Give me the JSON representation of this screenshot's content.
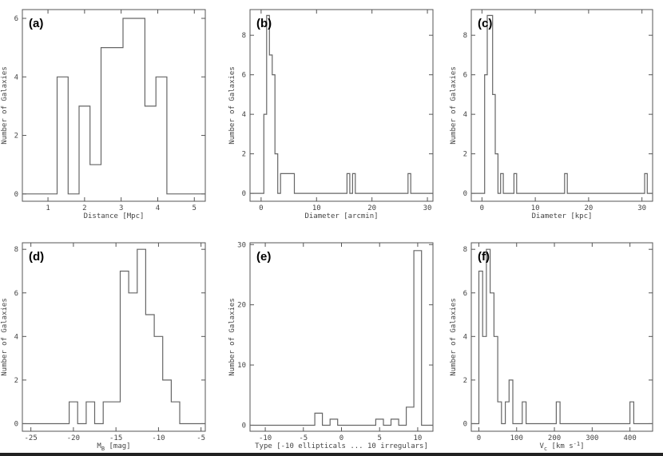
{
  "chart_data": [
    {
      "type": "histogram",
      "panel_label": "(a)",
      "xlabel": "Distance [Mpc]",
      "ylabel": "Number of Galaxies",
      "xlim": [
        0.3,
        5.3
      ],
      "ylim": [
        -0.25,
        6.3
      ],
      "xticks": [
        1,
        2,
        3,
        4,
        5
      ],
      "yticks": [
        0,
        2,
        4,
        6
      ],
      "bin_edges": [
        0.3,
        1.25,
        1.55,
        1.85,
        2.15,
        2.45,
        2.75,
        3.05,
        3.35,
        3.65,
        3.95,
        4.25,
        5.3
      ],
      "counts": [
        0,
        4,
        0,
        3,
        1,
        5,
        5,
        6,
        6,
        3,
        4,
        0
      ]
    },
    {
      "type": "histogram",
      "panel_label": "(b)",
      "xlabel": "Diameter [arcmin]",
      "ylabel": "Number of Galaxies",
      "xlim": [
        -2,
        31
      ],
      "ylim": [
        -0.4,
        9.3
      ],
      "xticks": [
        0,
        10,
        20,
        30
      ],
      "yticks": [
        0,
        2,
        4,
        6,
        8
      ],
      "bin_edges": [
        -2,
        0.5,
        1.0,
        1.5,
        2.0,
        2.5,
        3.0,
        3.5,
        6.0,
        15.5,
        16.0,
        16.5,
        17.0,
        26.5,
        27.0,
        31
      ],
      "counts": [
        0,
        4,
        9,
        7,
        6,
        2,
        0,
        1,
        0,
        1,
        0,
        1,
        0,
        1,
        0
      ]
    },
    {
      "type": "histogram",
      "panel_label": "(c)",
      "xlabel": "Diameter [kpc]",
      "ylabel": "Number of Galaxies",
      "xlim": [
        -2,
        32
      ],
      "ylim": [
        -0.4,
        9.3
      ],
      "xticks": [
        0,
        10,
        20,
        30
      ],
      "yticks": [
        0,
        2,
        4,
        6,
        8
      ],
      "bin_edges": [
        -2,
        0.5,
        1.0,
        2.0,
        2.5,
        3.0,
        3.5,
        4.0,
        6.0,
        6.5,
        15.5,
        16.0,
        30.5,
        31.0,
        32
      ],
      "counts": [
        0,
        6,
        9,
        5,
        2,
        0,
        1,
        0,
        1,
        0,
        1,
        0,
        1,
        0
      ]
    },
    {
      "type": "histogram",
      "panel_label": "(d)",
      "xlabel": "M_B [mag]",
      "xlabel_main": "M",
      "xlabel_sub": "B",
      "xlabel_tail": " [mag]",
      "ylabel": "Number of Galaxies",
      "xlim": [
        -26,
        -4.5
      ],
      "ylim": [
        -0.35,
        8.3
      ],
      "xticks": [
        -25,
        -20,
        -15,
        -10,
        -5
      ],
      "yticks": [
        0,
        2,
        4,
        6,
        8
      ],
      "bin_edges": [
        -26,
        -20.5,
        -19.5,
        -18.5,
        -17.5,
        -16.5,
        -15.5,
        -14.5,
        -13.5,
        -12.5,
        -11.5,
        -10.5,
        -9.5,
        -8.5,
        -7.5,
        -4.5
      ],
      "counts": [
        0,
        1,
        0,
        1,
        0,
        1,
        1,
        7,
        6,
        8,
        5,
        4,
        2,
        1,
        0
      ]
    },
    {
      "type": "histogram",
      "panel_label": "(e)",
      "xlabel": "Type [-10 ellipticals ... 10 irregulars]",
      "ylabel": "Number of Galaxies",
      "xlim": [
        -12,
        12
      ],
      "ylim": [
        -1.0,
        30.3
      ],
      "xticks": [
        -10,
        -5,
        0,
        5,
        10
      ],
      "yticks": [
        0,
        10,
        20,
        30
      ],
      "bin_edges": [
        -12,
        -3.5,
        -2.5,
        -1.5,
        -0.5,
        4.5,
        5.5,
        6.5,
        7.5,
        8.5,
        9.5,
        10.5,
        12
      ],
      "counts": [
        0,
        2,
        0,
        1,
        0,
        1,
        0,
        1,
        0,
        3,
        29,
        0
      ]
    },
    {
      "type": "histogram",
      "panel_label": "(f)",
      "xlabel": "V_c [km s^-1]",
      "xlabel_main": "V",
      "xlabel_sub": "c",
      "xlabel_tail": " [km s",
      "xlabel_sup": "-1",
      "xlabel_end": "]",
      "ylabel": "Number of Galaxies",
      "xlim": [
        -20,
        460
      ],
      "ylim": [
        -0.35,
        8.3
      ],
      "xticks": [
        0,
        100,
        200,
        300,
        400
      ],
      "yticks": [
        0,
        2,
        4,
        6,
        8
      ],
      "bin_edges": [
        -20,
        0,
        10,
        20,
        30,
        40,
        50,
        60,
        70,
        80,
        90,
        115,
        125,
        205,
        215,
        400,
        410,
        460
      ],
      "counts": [
        0,
        7,
        4,
        8,
        6,
        4,
        1,
        0,
        1,
        2,
        0,
        1,
        0,
        1,
        0,
        1,
        0
      ]
    }
  ]
}
